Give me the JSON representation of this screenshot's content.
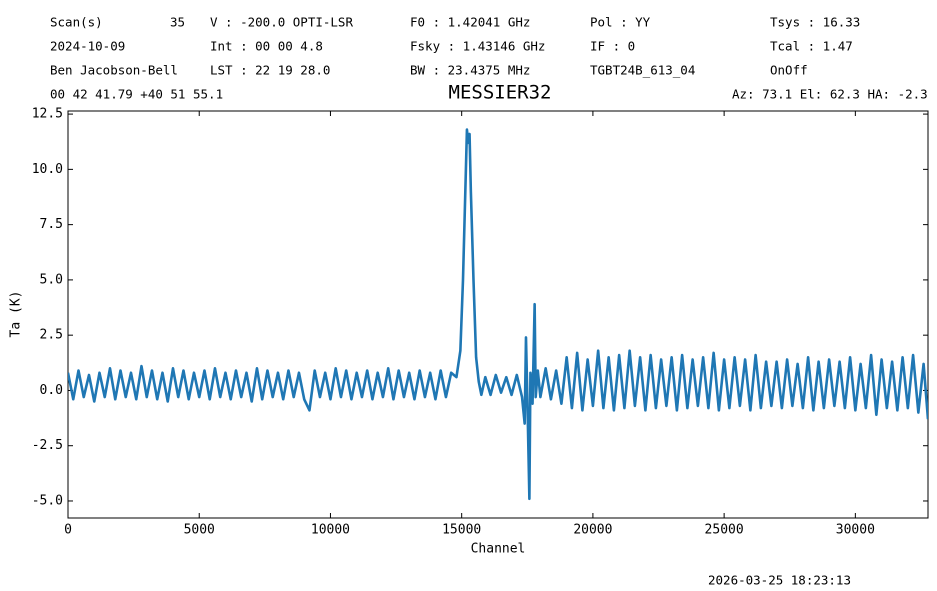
{
  "chart_data": {
    "type": "line",
    "title": "MESSIER32",
    "header": [
      [
        "Scan(s)",
        "35",
        "V   : -200.0 OPTI-LSR",
        "F0   :  1.42041 GHz",
        "Pol :   YY",
        "Tsys   :  16.33"
      ],
      [
        "2024-10-09",
        "Int : 00 00 4.8",
        "Fsky :  1.43146 GHz",
        "IF  :    0",
        "Tcal   :  1.47"
      ],
      [
        "Ben Jacobson-Bell",
        "LST : 22 19 28.0",
        "BW   :  23.4375 MHz",
        "TGBT24B_613_04",
        "OnOff"
      ]
    ],
    "coordinates": "00 42 41.79  +40 51 55.1",
    "pointing": "Az: 73.1  El: 62.3  HA: -2.3",
    "timestamp": "2026-03-25 18:23:13",
    "xlabel": "Channel",
    "ylabel": "Ta (K)",
    "color": "#1f77b4",
    "xlim": [
      0,
      32768
    ],
    "ylim": [
      -5.77,
      12.64
    ],
    "xticks": [
      0,
      5000,
      10000,
      15000,
      20000,
      25000,
      30000
    ],
    "yticks": [
      {
        "value": -5,
        "label": "-5.0"
      },
      -2.5,
      {
        "value": 0,
        "label": "0.0"
      },
      2.5,
      {
        "value": 5,
        "label": "5.0"
      },
      7.5,
      {
        "value": 10,
        "label": "10.0"
      },
      12.5
    ],
    "x": [
      0,
      200,
      400,
      600,
      800,
      1000,
      1200,
      1400,
      1600,
      1800,
      2000,
      2200,
      2400,
      2600,
      2800,
      3000,
      3200,
      3400,
      3600,
      3800,
      4000,
      4200,
      4400,
      4600,
      4800,
      5000,
      5200,
      5400,
      5600,
      5800,
      6000,
      6200,
      6400,
      6600,
      6800,
      7000,
      7200,
      7400,
      7600,
      7800,
      8000,
      8200,
      8400,
      8600,
      8800,
      9000,
      9200,
      9400,
      9600,
      9800,
      10000,
      10200,
      10400,
      10600,
      10800,
      11000,
      11200,
      11400,
      11600,
      11800,
      12000,
      12200,
      12400,
      12600,
      12800,
      13000,
      13200,
      13400,
      13600,
      13800,
      14000,
      14200,
      14400,
      14600,
      14800,
      14950,
      15050,
      15150,
      15200,
      15250,
      15300,
      15350,
      15450,
      15550,
      15650,
      15750,
      15900,
      16100,
      16300,
      16500,
      16700,
      16900,
      17100,
      17300,
      17400,
      17450,
      17500,
      17580,
      17620,
      17700,
      17780,
      17820,
      17900,
      18000,
      18200,
      18400,
      18600,
      18800,
      19000,
      19200,
      19400,
      19600,
      19800,
      20000,
      20200,
      20400,
      20600,
      20800,
      21000,
      21200,
      21400,
      21600,
      21800,
      22000,
      22200,
      22400,
      22600,
      22800,
      23000,
      23200,
      23400,
      23600,
      23800,
      24000,
      24200,
      24400,
      24600,
      24800,
      25000,
      25200,
      25400,
      25600,
      25800,
      26000,
      26200,
      26400,
      26600,
      26800,
      27000,
      27200,
      27400,
      27600,
      27800,
      28000,
      28200,
      28400,
      28600,
      28800,
      29000,
      29200,
      29400,
      29600,
      29800,
      30000,
      30200,
      30400,
      30600,
      30800,
      31000,
      31200,
      31400,
      31600,
      31800,
      32000,
      32200,
      32400,
      32600,
      32767
    ],
    "values": [
      0.8,
      -0.4,
      0.9,
      -0.3,
      0.7,
      -0.5,
      0.8,
      -0.3,
      1.0,
      -0.4,
      0.9,
      -0.3,
      0.8,
      -0.4,
      1.1,
      -0.3,
      0.9,
      -0.4,
      0.8,
      -0.5,
      1.0,
      -0.3,
      0.9,
      -0.4,
      0.8,
      -0.3,
      0.9,
      -0.4,
      1.0,
      -0.3,
      0.8,
      -0.4,
      0.9,
      -0.3,
      0.8,
      -0.5,
      1.0,
      -0.4,
      0.9,
      -0.3,
      0.8,
      -0.4,
      0.9,
      -0.3,
      0.8,
      -0.4,
      -0.9,
      0.9,
      -0.3,
      0.8,
      -0.4,
      1.0,
      -0.3,
      0.9,
      -0.4,
      0.8,
      -0.3,
      0.9,
      -0.4,
      0.8,
      -0.3,
      1.0,
      -0.4,
      0.9,
      -0.3,
      0.8,
      -0.4,
      0.9,
      -0.3,
      0.8,
      -0.4,
      0.9,
      -0.3,
      0.8,
      0.6,
      1.8,
      5.0,
      9.5,
      11.8,
      11.2,
      11.6,
      9.0,
      5.0,
      1.5,
      0.4,
      -0.2,
      0.6,
      -0.2,
      0.7,
      -0.1,
      0.6,
      -0.2,
      0.7,
      -0.3,
      -1.5,
      2.4,
      -0.2,
      -4.9,
      0.8,
      -0.6,
      3.9,
      -0.3,
      0.9,
      -0.3,
      1.0,
      -0.4,
      0.9,
      -0.6,
      1.5,
      -0.8,
      1.7,
      -0.9,
      1.4,
      -0.7,
      1.8,
      -0.8,
      1.5,
      -0.9,
      1.6,
      -0.8,
      1.8,
      -0.7,
      1.5,
      -0.9,
      1.6,
      -0.8,
      1.4,
      -0.7,
      1.5,
      -0.9,
      1.6,
      -0.8,
      1.4,
      -0.7,
      1.5,
      -0.8,
      1.7,
      -0.9,
      1.4,
      -0.8,
      1.5,
      -0.7,
      1.4,
      -0.9,
      1.6,
      -0.8,
      1.3,
      -0.7,
      1.3,
      -0.8,
      1.4,
      -0.7,
      1.2,
      -0.8,
      1.5,
      -0.9,
      1.3,
      -0.8,
      1.4,
      -0.7,
      1.3,
      -0.8,
      1.5,
      -0.9,
      1.2,
      -0.8,
      1.6,
      -1.1,
      1.4,
      -0.8,
      1.3,
      -0.9,
      1.5,
      -0.8,
      1.6,
      -1.0,
      1.2,
      -1.3
    ]
  }
}
